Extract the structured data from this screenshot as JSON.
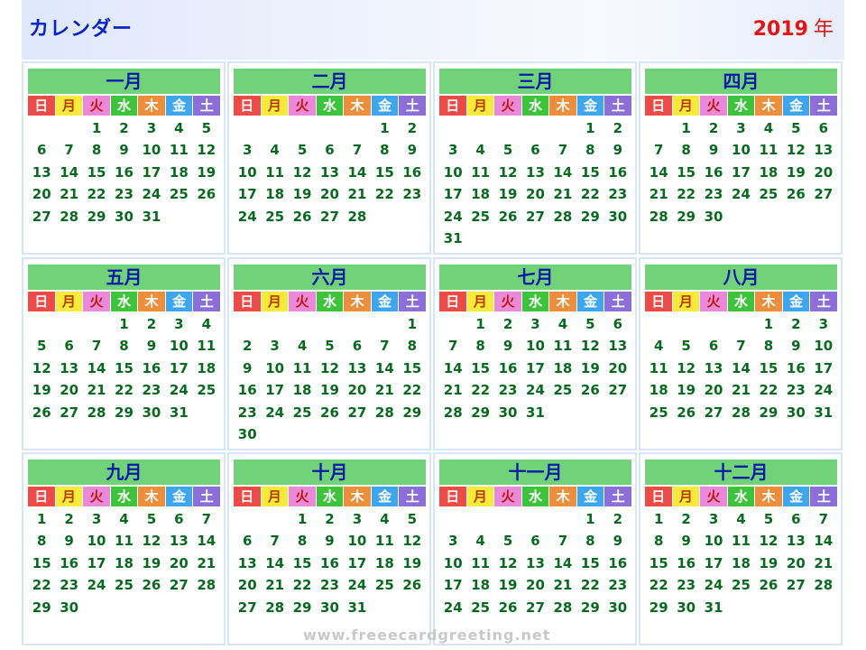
{
  "header": {
    "title": "カレンダー",
    "year": "2019",
    "year_suffix": "年"
  },
  "weekday_labels": [
    "日",
    "月",
    "火",
    "水",
    "木",
    "金",
    "土"
  ],
  "months": [
    {
      "name": "一月",
      "offset": 2,
      "days": 31
    },
    {
      "name": "二月",
      "offset": 5,
      "days": 28
    },
    {
      "name": "三月",
      "offset": 5,
      "days": 31
    },
    {
      "name": "四月",
      "offset": 1,
      "days": 30
    },
    {
      "name": "五月",
      "offset": 3,
      "days": 31
    },
    {
      "name": "六月",
      "offset": 6,
      "days": 30
    },
    {
      "name": "七月",
      "offset": 1,
      "days": 31
    },
    {
      "name": "八月",
      "offset": 4,
      "days": 31
    },
    {
      "name": "九月",
      "offset": 0,
      "days": 30
    },
    {
      "name": "十月",
      "offset": 2,
      "days": 31
    },
    {
      "name": "十一月",
      "offset": 5,
      "days": 30
    },
    {
      "name": "十二月",
      "offset": 0,
      "days": 31
    }
  ],
  "watermark": "www.freeecardgreeting.net",
  "colors": {
    "title": "#0a23c9",
    "year": "#e21515",
    "month_header_bg": "#72d27a",
    "day_text": "#076a1e",
    "weekday_bg": [
      "#ee4a48",
      "#f7ea3a",
      "#ea88da",
      "#3ec33c",
      "#ec8e3c",
      "#3ea6ee",
      "#8c6fd6"
    ]
  }
}
